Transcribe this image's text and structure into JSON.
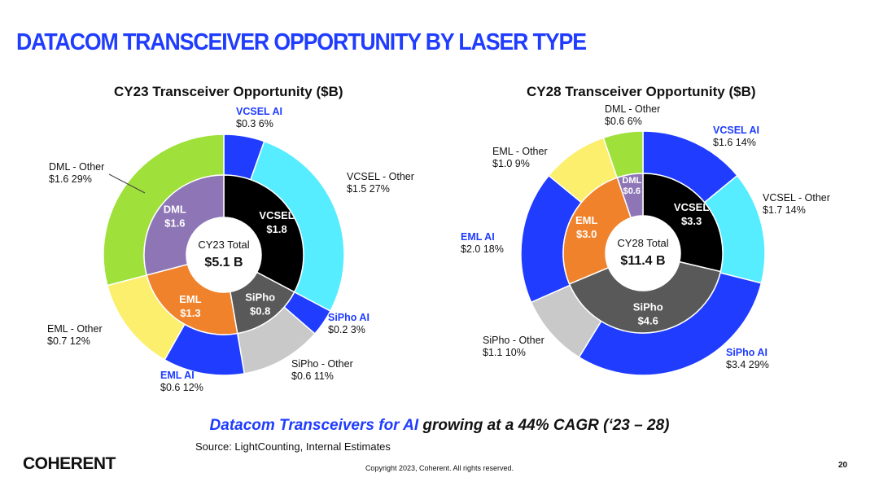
{
  "slide": {
    "title": "DATACOM TRANSCEIVER OPPORTUNITY BY LASER TYPE",
    "tagline_highlight": "Datacom Transceivers for AI",
    "tagline_rest": " growing at a 44% CAGR (‘23 – 28)",
    "source": "Source: LightCounting, Internal Estimates",
    "logo": "COHERENT",
    "copyright": "Copyright 2023, Coherent. All rights reserved.",
    "page_number": "20"
  },
  "colors": {
    "vcsel": "#000000",
    "siph": "#595959",
    "eml": "#f0822b",
    "dml": "#8e76b6",
    "vcsel_ai": "#1f3cff",
    "vcsel_other": "#55edff",
    "siph_ai": "#1f3cff",
    "siph_other": "#c9c9c9",
    "eml_ai": "#1f3cff",
    "eml_other": "#fbef6d",
    "dml_other": "#9fe03a",
    "ai_label": "#1f3cff"
  },
  "chart_data": [
    {
      "type": "pie",
      "subtype": "nested-donut",
      "title": "CY23 Transceiver Opportunity ($B)",
      "center_label": "CY23 Total",
      "center_value": "$5.1 B",
      "inner": [
        {
          "key": "vcsel",
          "name": "VCSEL",
          "value": 1.8,
          "label": "$1.8"
        },
        {
          "key": "siph",
          "name": "SiPho",
          "value": 0.8,
          "label": "$0.8"
        },
        {
          "key": "eml",
          "name": "EML",
          "value": 1.3,
          "label": "$1.3"
        },
        {
          "key": "dml",
          "name": "DML",
          "value": 1.6,
          "label": "$1.6"
        }
      ],
      "outer": [
        {
          "key": "vcsel_ai",
          "name": "VCSEL AI",
          "value": 0.3,
          "text": "$0.3  6%",
          "ai": true
        },
        {
          "key": "vcsel_other",
          "name": "VCSEL - Other",
          "value": 1.5,
          "text": "$1.5  27%",
          "ai": false
        },
        {
          "key": "siph_ai",
          "name": "SiPho AI",
          "value": 0.2,
          "text": "$0.2  3%",
          "ai": true
        },
        {
          "key": "siph_other",
          "name": "SiPho - Other",
          "value": 0.6,
          "text": "$0.6  11%",
          "ai": false
        },
        {
          "key": "eml_ai",
          "name": "EML AI",
          "value": 0.6,
          "text": "$0.6  12%",
          "ai": true
        },
        {
          "key": "eml_other",
          "name": "EML - Other",
          "value": 0.7,
          "text": "$0.7  12%",
          "ai": false
        },
        {
          "key": "dml_other",
          "name": "DML - Other",
          "value": 1.6,
          "text": "$1.6  29%",
          "ai": false
        }
      ]
    },
    {
      "type": "pie",
      "subtype": "nested-donut",
      "title": "CY28 Transceiver Opportunity ($B)",
      "center_label": "CY28 Total",
      "center_value": "$11.4 B",
      "inner": [
        {
          "key": "vcsel",
          "name": "VCSEL",
          "value": 3.3,
          "label": "$3.3"
        },
        {
          "key": "siph",
          "name": "SiPho",
          "value": 4.6,
          "label": "$4.6"
        },
        {
          "key": "eml",
          "name": "EML",
          "value": 3.0,
          "label": "$3.0"
        },
        {
          "key": "dml",
          "name": "DML",
          "value": 0.6,
          "label": "$0.6"
        }
      ],
      "outer": [
        {
          "key": "vcsel_ai",
          "name": "VCSEL AI",
          "value": 1.6,
          "text": "$1.6  14%",
          "ai": true
        },
        {
          "key": "vcsel_other",
          "name": "VCSEL - Other",
          "value": 1.7,
          "text": "$1.7  14%",
          "ai": false
        },
        {
          "key": "siph_ai",
          "name": "SiPho AI",
          "value": 3.4,
          "text": "$3.4  29%",
          "ai": true
        },
        {
          "key": "siph_other",
          "name": "SiPho - Other",
          "value": 1.1,
          "text": "$1.1  10%",
          "ai": false
        },
        {
          "key": "eml_ai",
          "name": "EML AI",
          "value": 2.0,
          "text": "$2.0  18%",
          "ai": true
        },
        {
          "key": "eml_other",
          "name": "EML - Other",
          "value": 1.0,
          "text": "$1.0  9%",
          "ai": false
        },
        {
          "key": "dml_other",
          "name": "DML - Other",
          "value": 0.6,
          "text": "$0.6  6%",
          "ai": false
        }
      ]
    }
  ]
}
